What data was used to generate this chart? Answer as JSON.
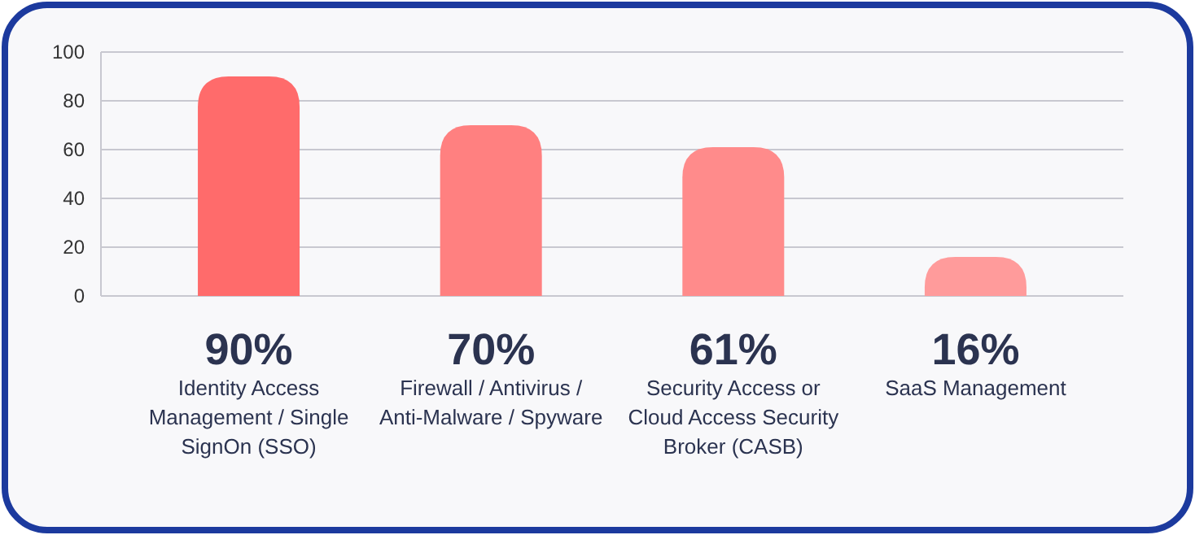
{
  "chart_data": {
    "type": "bar",
    "categories": [
      "Identity Access Management / Single SignOn (SSO)",
      "Firewall / Antivirus / Anti-Malware / Spyware",
      "Security Access or Cloud Access Security Broker (CASB)",
      "SaaS Management"
    ],
    "values": [
      90,
      70,
      61,
      16
    ],
    "colors": [
      "#ff6b6b",
      "#ff8080",
      "#ff8b8b",
      "#ff9b9b"
    ],
    "value_labels": [
      "90%",
      "70%",
      "61%",
      "16%"
    ],
    "ylim": [
      0,
      100
    ],
    "yticks": [
      0,
      20,
      40,
      60,
      80,
      100
    ],
    "grid": "y"
  }
}
